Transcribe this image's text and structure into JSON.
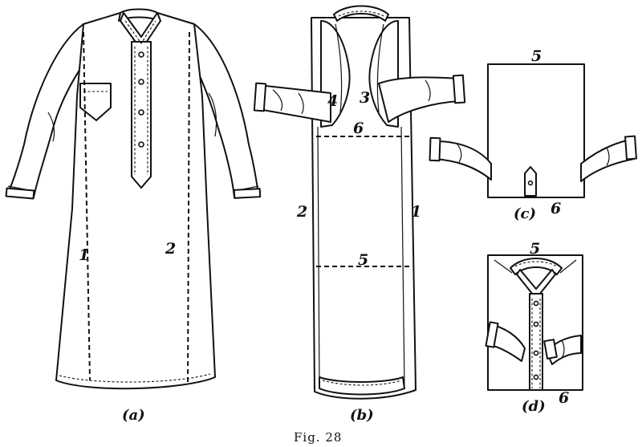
{
  "figure": {
    "caption": "Fig. 28",
    "panels": [
      {
        "id": "a",
        "label": "(a)",
        "fold_labels": [
          "1",
          "2"
        ]
      },
      {
        "id": "b",
        "label": "(b)",
        "fold_labels": [
          "1",
          "2",
          "3",
          "4",
          "5",
          "6"
        ]
      },
      {
        "id": "c",
        "label": "(c)",
        "fold_labels": [
          "5",
          "6"
        ]
      },
      {
        "id": "d",
        "label": "(d)",
        "fold_labels": [
          "5",
          "6"
        ]
      }
    ]
  }
}
